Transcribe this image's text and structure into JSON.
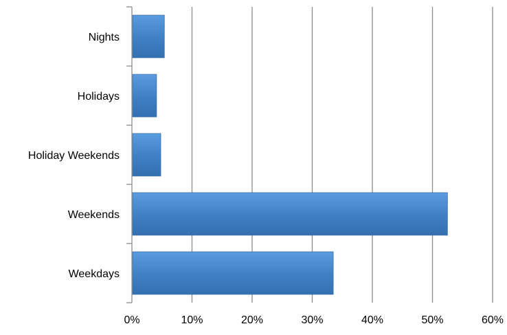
{
  "chart_data": {
    "type": "bar",
    "orientation": "horizontal",
    "title": "",
    "xlabel": "",
    "ylabel": "",
    "categories": [
      "Nights",
      "Holidays",
      "Holiday Weekends",
      "Weekends",
      "Weekdays"
    ],
    "values": [
      5.4,
      4.1,
      4.8,
      52.5,
      33.5
    ],
    "xlim": [
      0,
      60
    ],
    "x_ticks": [
      0,
      10,
      20,
      30,
      40,
      50,
      60
    ],
    "x_tick_labels": [
      "0%",
      "10%",
      "20%",
      "30%",
      "40%",
      "50%",
      "60%"
    ],
    "grid": true,
    "legend": "none",
    "bar_color": "#3f7fc4"
  }
}
